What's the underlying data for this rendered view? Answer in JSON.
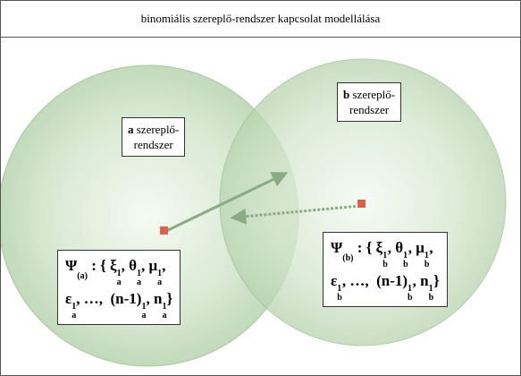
{
  "title": "binomiális szereplő-rendszer kapcsolat modellálása",
  "systems": [
    {
      "letter": "a",
      "lines": [
        " szereplő-",
        "rendszer"
      ],
      "formula": [
        [
          {
            "text": "Ψ",
            "sub": "(a)"
          },
          {
            "text": " : { ξ",
            "sub": "a",
            "sup": "1"
          },
          {
            "text": ", θ",
            "sub": "a",
            "sup": "1"
          },
          {
            "text": ", μ",
            "sub": "a",
            "sup": "1"
          },
          {
            "text": ","
          }
        ],
        [
          {
            "text": "ε",
            "sub": "a",
            "sup": "1"
          },
          {
            "text": ", …,  (n-1)",
            "sub": "a",
            "sup": "1"
          },
          {
            "text": ", n",
            "sub": "a",
            "sup": "1"
          },
          {
            "text": "}"
          }
        ]
      ]
    },
    {
      "letter": "b",
      "lines": [
        " szereplő-",
        "rendszer"
      ],
      "formula": [
        [
          {
            "text": "Ψ",
            "sub": "(b)"
          },
          {
            "text": " : { ξ",
            "sub": "b",
            "sup": "1"
          },
          {
            "text": ", θ",
            "sub": "b",
            "sup": "1"
          },
          {
            "text": ", μ",
            "sub": "b",
            "sup": "1"
          },
          {
            "text": ","
          }
        ],
        [
          {
            "text": "ε",
            "sub": "b",
            "sup": "1"
          },
          {
            "text": ", …,  (n-1)",
            "sub": "b",
            "sup": "1"
          },
          {
            "text": ", n",
            "sub": "b",
            "sup": "1"
          },
          {
            "text": "}"
          }
        ]
      ]
    }
  ]
}
